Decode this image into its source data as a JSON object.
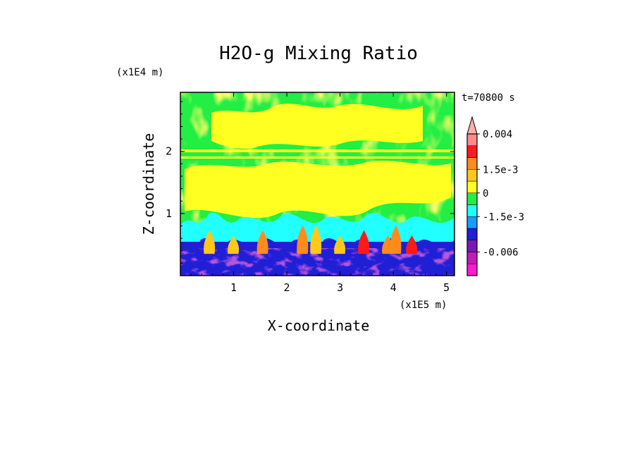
{
  "chart_data": {
    "type": "heatmap",
    "title": "H2O-g Mixing Ratio",
    "xlabel": "X-coordinate",
    "ylabel": "Z-coordinate",
    "x_scale_label": "(x1E5 m)",
    "y_scale_label": "(x1E4 m)",
    "time_label": "t=70800 s",
    "xlim": [
      0,
      5.15
    ],
    "ylim": [
      0,
      2.95
    ],
    "x_ticks": [
      1,
      2,
      3,
      4,
      5
    ],
    "x_tick_labels": [
      "1",
      "2",
      "3",
      "4",
      "5"
    ],
    "y_ticks": [
      1,
      2
    ],
    "y_tick_labels": [
      "1",
      "2"
    ],
    "colorbar": {
      "levels": [
        -0.009,
        -0.006,
        -0.0045,
        -0.003,
        -0.0015,
        -0.00075,
        0,
        0.00075,
        0.0015,
        0.0025,
        0.003,
        0.004
      ],
      "colors": [
        "#ff1ad2",
        "#c01ab8",
        "#7a18b4",
        "#1f1fd6",
        "#1a9cff",
        "#22ffff",
        "#22ee44",
        "#ffff22",
        "#ffc81a",
        "#ff8c1a",
        "#ff1a1a",
        "#ff8a8a",
        "#ffb0a8"
      ],
      "tick_values": [
        0.004,
        0.0015,
        0,
        -0.0015,
        -0.006
      ],
      "tick_labels": [
        "0.004",
        "1.5e-3",
        "0",
        "-1.5e-3",
        "-0.006"
      ]
    },
    "regions": [
      {
        "z_range": [
          0,
          0.6
        ],
        "dominant_values": "-0.0045 to 0.003",
        "description_level": "blue/purple with orange plumes"
      },
      {
        "z_range": [
          0.6,
          0.85
        ],
        "dominant_values": "-0.00075 to 0",
        "description_level": "cyan"
      },
      {
        "z_range": [
          0.85,
          2.95
        ],
        "dominant_values": "0 to 0.0015",
        "description_level": "green/yellow"
      }
    ]
  },
  "colors": {
    "background": "#ffffff",
    "axis": "#000000"
  }
}
